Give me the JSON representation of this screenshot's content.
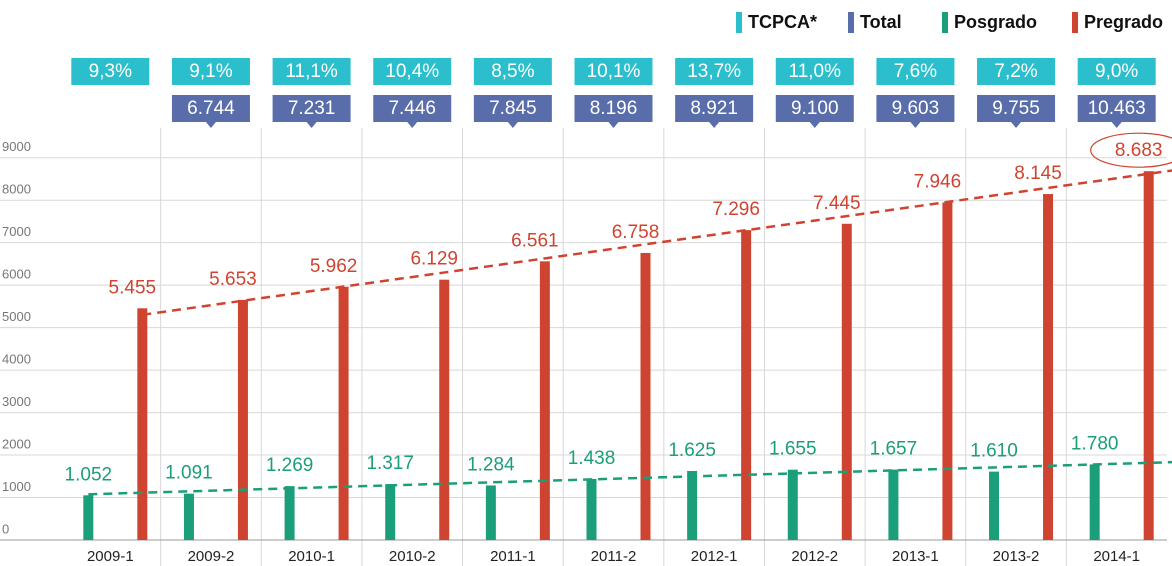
{
  "chart_data": {
    "type": "bar",
    "categories": [
      "2009-1",
      "2009-2",
      "2010-1",
      "2010-2",
      "2011-1",
      "2011-2",
      "2012-1",
      "2012-2",
      "2013-1",
      "2013-2",
      "2014-1"
    ],
    "series": [
      {
        "name": "TCPCA*",
        "color": "#2bbfce",
        "values": [
          9.3,
          9.1,
          11.1,
          10.4,
          8.5,
          10.1,
          13.7,
          11.0,
          7.6,
          7.2,
          9.0
        ],
        "value_labels": [
          "9,3%",
          "9,1%",
          "11,1%",
          "10,4%",
          "8,5%",
          "10,1%",
          "13,7%",
          "11,0%",
          "7,6%",
          "7,2%",
          "9,0%"
        ]
      },
      {
        "name": "Total",
        "color": "#5a6dab",
        "values": [
          null,
          6744,
          7231,
          7446,
          7845,
          8196,
          8921,
          9100,
          9603,
          9755,
          10463
        ],
        "value_labels": [
          null,
          "6.744",
          "7.231",
          "7.446",
          "7.845",
          "8.196",
          "8.921",
          "9.100",
          "9.603",
          "9.755",
          "10.463"
        ]
      },
      {
        "name": "Posgrado",
        "color": "#1b9e7a",
        "values": [
          1052,
          1091,
          1269,
          1317,
          1284,
          1438,
          1625,
          1655,
          1657,
          1610,
          1780
        ],
        "value_labels": [
          "1.052",
          "1.091",
          "1.269",
          "1.317",
          "1.284",
          "1.438",
          "1.625",
          "1.655",
          "1.657",
          "1.610",
          "1.780"
        ]
      },
      {
        "name": "Pregrado",
        "color": "#cf4431",
        "values": [
          5455,
          5653,
          5962,
          6129,
          6561,
          6758,
          7296,
          7445,
          7946,
          8145,
          8683
        ],
        "value_labels": [
          "5.455",
          "5.653",
          "5.962",
          "6.129",
          "6.561",
          "6.758",
          "7.296",
          "7.445",
          "7.946",
          "8.145",
          "8.683"
        ]
      }
    ],
    "ylim": [
      0,
      9700
    ],
    "yticks": [
      0,
      1000,
      2000,
      3000,
      4000,
      5000,
      6000,
      7000,
      8000,
      9000
    ],
    "grid": true
  }
}
